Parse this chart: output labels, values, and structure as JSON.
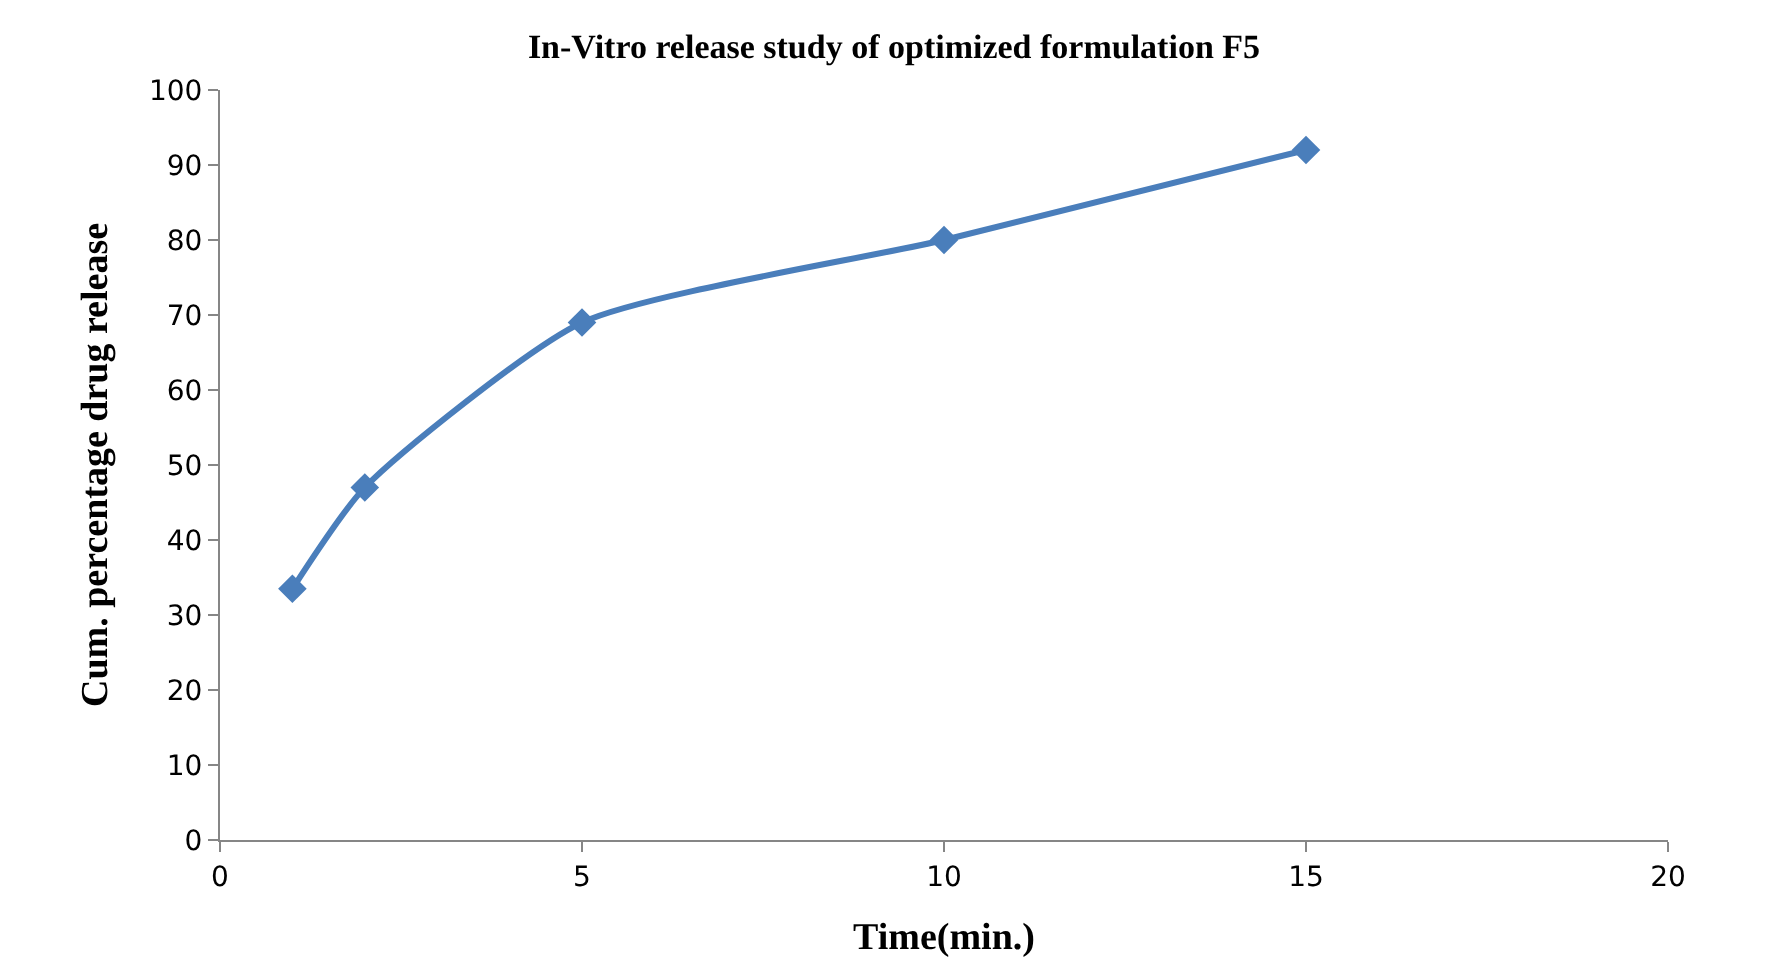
{
  "chart_data": {
    "type": "line",
    "title": "In-Vitro release study of optimized formulation F5",
    "xlabel": "Time(min.)",
    "ylabel": "Cum. percentage drug release",
    "x": [
      1,
      2,
      5,
      10,
      15
    ],
    "series": [
      {
        "color": "#4a7ebb",
        "values": [
          33.5,
          47,
          69,
          80,
          92
        ]
      }
    ],
    "xlim": [
      0,
      20
    ],
    "xticks": [
      0,
      5,
      10,
      15,
      20
    ],
    "ylim": [
      0,
      100
    ],
    "yticks": [
      0,
      10,
      20,
      30,
      40,
      50,
      60,
      70,
      80,
      90,
      100
    ],
    "legend": false,
    "marker": "diamond",
    "line_style": "solid"
  }
}
